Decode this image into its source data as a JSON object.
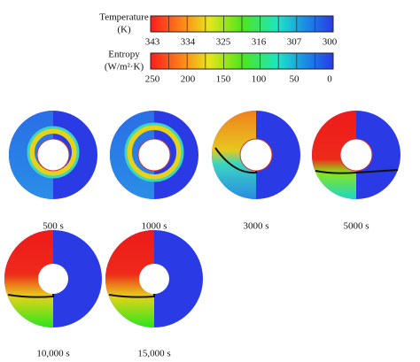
{
  "colorbars": [
    {
      "title": [
        "Temperature",
        "(K)"
      ],
      "ticks": [
        343,
        334,
        325,
        316,
        307,
        300
      ]
    },
    {
      "title": [
        "Entropy",
        "(W/m²·K)"
      ],
      "ticks": [
        250,
        200,
        150,
        100,
        50,
        0
      ]
    }
  ],
  "panels": [
    {
      "label": "500 s"
    },
    {
      "label": "1000 s"
    },
    {
      "label": "3000 s"
    },
    {
      "label": "5000 s"
    },
    {
      "label": "10,000 s"
    },
    {
      "label": "15,000 s"
    }
  ]
}
